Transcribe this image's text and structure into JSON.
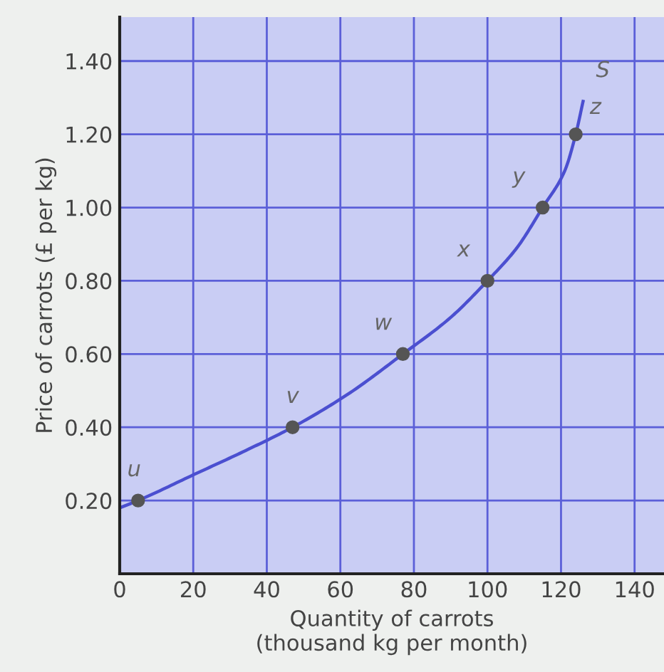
{
  "chart_data": {
    "type": "line",
    "xlabel": "Quantity of carrots\n(thousand kg per month)",
    "ylabel": "Price of carrots (£ per kg)",
    "xlim": [
      0,
      148
    ],
    "ylim": [
      0,
      1.52
    ],
    "xticks": [
      0,
      20,
      40,
      60,
      80,
      100,
      120,
      140
    ],
    "yticks": [
      {
        "value": 0.2,
        "label": "0.20"
      },
      {
        "value": 0.4,
        "label": "0.40"
      },
      {
        "value": 0.6,
        "label": "0.60"
      },
      {
        "value": 0.8,
        "label": "0.80"
      },
      {
        "value": 1.0,
        "label": "1.00"
      },
      {
        "value": 1.2,
        "label": "1.20"
      },
      {
        "value": 1.4,
        "label": "1.40"
      }
    ],
    "grid": true,
    "series": [
      {
        "color": "#4b4fd0",
        "x": [
          0,
          5,
          20,
          35,
          47,
          62,
          77,
          90,
          100,
          108,
          115,
          121,
          124,
          126
        ],
        "values": [
          0.18,
          0.2,
          0.27,
          0.34,
          0.4,
          0.49,
          0.6,
          0.7,
          0.8,
          0.89,
          1.0,
          1.1,
          1.2,
          1.29
        ]
      },
      {
        "type": "scatter",
        "color": "#555555",
        "marker": "circle",
        "x": [
          5,
          47,
          77,
          100,
          115,
          124
        ],
        "values": [
          0.2,
          0.4,
          0.6,
          0.8,
          1.0,
          1.2
        ]
      }
    ],
    "annotations": [
      {
        "text": "u",
        "x": 5,
        "y": 0.2
      },
      {
        "text": "v",
        "x": 47,
        "y": 0.4
      },
      {
        "text": "w",
        "x": 77,
        "y": 0.6
      },
      {
        "text": "x",
        "x": 100,
        "y": 0.8
      },
      {
        "text": "y",
        "x": 115,
        "y": 1.0
      },
      {
        "text": "z",
        "x": 124,
        "y": 1.2
      },
      {
        "text": "S",
        "x": 126,
        "y": 1.29
      }
    ]
  }
}
